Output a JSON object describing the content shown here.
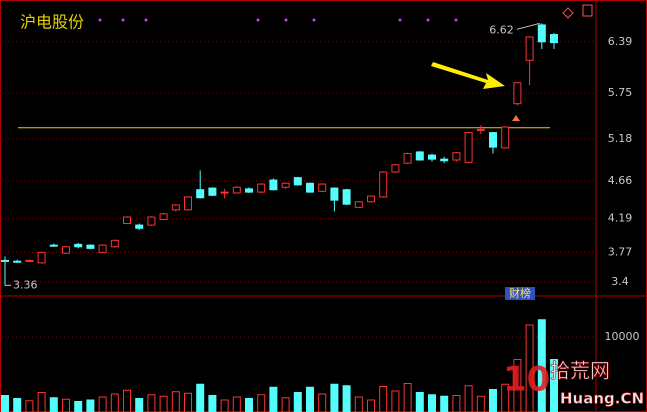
{
  "chart_data": {
    "type": "candlestick",
    "title": "沪电股份",
    "open": [
      3.67,
      3.66,
      3.66,
      3.64,
      3.86,
      3.76,
      3.87,
      3.86,
      3.77,
      3.84,
      4.13,
      4.11,
      4.11,
      4.18,
      4.3,
      4.3,
      4.55,
      4.57,
      4.52,
      4.51,
      4.56,
      4.52,
      4.67,
      4.58,
      4.7,
      4.63,
      4.53,
      4.57,
      4.55,
      4.33,
      4.4,
      4.46,
      4.77,
      4.88,
      5.02,
      4.98,
      4.93,
      4.92,
      4.89,
      5.29,
      5.26,
      5.07,
      5.62,
      6.16,
      6.6,
      6.48
    ],
    "high": [
      3.72,
      3.68,
      3.68,
      3.78,
      3.88,
      3.85,
      3.89,
      3.87,
      3.87,
      3.93,
      4.22,
      4.13,
      4.22,
      4.26,
      4.37,
      4.47,
      4.79,
      4.58,
      4.56,
      4.6,
      4.58,
      4.63,
      4.69,
      4.64,
      4.71,
      4.64,
      4.63,
      4.58,
      4.56,
      4.41,
      4.48,
      4.78,
      4.87,
      5.01,
      5.03,
      5.0,
      4.96,
      5.02,
      5.27,
      5.35,
      5.27,
      5.34,
      5.89,
      6.46,
      6.62,
      6.5
    ],
    "low": [
      3.36,
      3.64,
      3.65,
      3.63,
      3.84,
      3.75,
      3.82,
      3.81,
      3.76,
      3.83,
      4.12,
      4.05,
      4.1,
      4.17,
      4.28,
      4.29,
      4.44,
      4.47,
      4.44,
      4.5,
      4.51,
      4.51,
      4.54,
      4.56,
      4.6,
      4.51,
      4.52,
      4.28,
      4.36,
      4.32,
      4.39,
      4.45,
      4.76,
      4.87,
      4.91,
      4.9,
      4.88,
      4.9,
      4.88,
      5.24,
      5.0,
      5.06,
      5.6,
      5.85,
      6.3,
      6.3
    ],
    "close": [
      3.66,
      3.65,
      3.67,
      3.77,
      3.85,
      3.84,
      3.84,
      3.82,
      3.86,
      3.92,
      4.21,
      4.07,
      4.21,
      4.25,
      4.36,
      4.46,
      4.45,
      4.48,
      4.52,
      4.58,
      4.52,
      4.62,
      4.55,
      4.63,
      4.61,
      4.52,
      4.62,
      4.42,
      4.37,
      4.4,
      4.47,
      4.77,
      4.86,
      5.0,
      4.92,
      4.93,
      4.91,
      5.01,
      5.26,
      5.3,
      5.08,
      5.33,
      5.88,
      6.45,
      6.39,
      6.38
    ],
    "volume": [
      2200,
      1800,
      1500,
      2600,
      1900,
      1700,
      1400,
      1600,
      2000,
      2400,
      2900,
      1800,
      2300,
      2100,
      2700,
      2500,
      3700,
      2200,
      1600,
      2000,
      1800,
      2300,
      3300,
      1900,
      2600,
      3300,
      2400,
      3700,
      3500,
      2000,
      1600,
      3400,
      2800,
      3800,
      2600,
      2300,
      2100,
      2200,
      3500,
      2100,
      3000,
      3700,
      7000,
      11600,
      12300,
      7000
    ],
    "ylim": [
      3.24,
      6.91
    ],
    "yticks": [
      3.4,
      3.77,
      4.19,
      4.66,
      5.18,
      5.75,
      6.39
    ],
    "volume_ylim": [
      0,
      15330
    ],
    "volume_yticks": [
      10000
    ],
    "reference_line": 5.32,
    "badge": "财榜",
    "grid": true,
    "up_color": "#ff3232",
    "down_color": "#54fcfc",
    "watermark": {
      "number": "10",
      "name": "拾荒网",
      "site": "Huang.CN"
    }
  }
}
